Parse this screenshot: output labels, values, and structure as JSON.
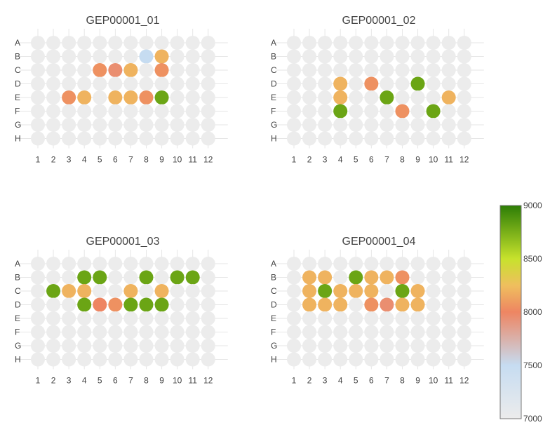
{
  "chart_data": {
    "type": "heatmap",
    "rows": [
      "A",
      "B",
      "C",
      "D",
      "E",
      "F",
      "G",
      "H"
    ],
    "cols": [
      "1",
      "2",
      "3",
      "4",
      "5",
      "6",
      "7",
      "8",
      "9",
      "10",
      "11",
      "12"
    ],
    "empty_color": "#ececec",
    "color_scale": {
      "min": 7000,
      "max": 9000,
      "ticks": [
        "7000",
        "7500",
        "8000",
        "8500",
        "9000"
      ],
      "stops": [
        {
          "value": 7000,
          "color": "#ececec"
        },
        {
          "value": 7500,
          "color": "#c6dcf1"
        },
        {
          "value": 8000,
          "color": "#ee8562"
        },
        {
          "value": 8250,
          "color": "#efbf5e"
        },
        {
          "value": 8500,
          "color": "#c7e22c"
        },
        {
          "value": 9000,
          "color": "#2d7d06"
        }
      ]
    },
    "plates": [
      {
        "title": "GEP00001_01",
        "wells": [
          {
            "row": "B",
            "col": 8,
            "value": 7500
          },
          {
            "row": "B",
            "col": 9,
            "value": 8200
          },
          {
            "row": "C",
            "col": 5,
            "value": 8050
          },
          {
            "row": "C",
            "col": 6,
            "value": 7950
          },
          {
            "row": "C",
            "col": 7,
            "value": 8200
          },
          {
            "row": "C",
            "col": 9,
            "value": 8050
          },
          {
            "row": "E",
            "col": 3,
            "value": 8050
          },
          {
            "row": "E",
            "col": 4,
            "value": 8200
          },
          {
            "row": "E",
            "col": 6,
            "value": 8200
          },
          {
            "row": "E",
            "col": 7,
            "value": 8200
          },
          {
            "row": "E",
            "col": 8,
            "value": 8050
          },
          {
            "row": "E",
            "col": 9,
            "value": 8800
          }
        ]
      },
      {
        "title": "GEP00001_02",
        "wells": [
          {
            "row": "D",
            "col": 4,
            "value": 8200
          },
          {
            "row": "D",
            "col": 6,
            "value": 8050
          },
          {
            "row": "D",
            "col": 9,
            "value": 8800
          },
          {
            "row": "E",
            "col": 4,
            "value": 8200
          },
          {
            "row": "E",
            "col": 7,
            "value": 8800
          },
          {
            "row": "E",
            "col": 11,
            "value": 8200
          },
          {
            "row": "F",
            "col": 4,
            "value": 8800
          },
          {
            "row": "F",
            "col": 8,
            "value": 8050
          },
          {
            "row": "F",
            "col": 10,
            "value": 8800
          }
        ]
      },
      {
        "title": "GEP00001_03",
        "wells": [
          {
            "row": "B",
            "col": 4,
            "value": 8800
          },
          {
            "row": "B",
            "col": 5,
            "value": 8800
          },
          {
            "row": "B",
            "col": 8,
            "value": 8800
          },
          {
            "row": "B",
            "col": 10,
            "value": 8800
          },
          {
            "row": "B",
            "col": 11,
            "value": 8800
          },
          {
            "row": "C",
            "col": 2,
            "value": 8800
          },
          {
            "row": "C",
            "col": 3,
            "value": 8200
          },
          {
            "row": "C",
            "col": 4,
            "value": 8200
          },
          {
            "row": "C",
            "col": 7,
            "value": 8200
          },
          {
            "row": "C",
            "col": 9,
            "value": 8200
          },
          {
            "row": "D",
            "col": 4,
            "value": 8800
          },
          {
            "row": "D",
            "col": 5,
            "value": 8000
          },
          {
            "row": "D",
            "col": 6,
            "value": 8050
          },
          {
            "row": "D",
            "col": 7,
            "value": 8800
          },
          {
            "row": "D",
            "col": 8,
            "value": 8800
          },
          {
            "row": "D",
            "col": 9,
            "value": 8800
          }
        ]
      },
      {
        "title": "GEP00001_04",
        "wells": [
          {
            "row": "B",
            "col": 2,
            "value": 8200
          },
          {
            "row": "B",
            "col": 3,
            "value": 8200
          },
          {
            "row": "B",
            "col": 5,
            "value": 8800
          },
          {
            "row": "B",
            "col": 6,
            "value": 8200
          },
          {
            "row": "B",
            "col": 7,
            "value": 8200
          },
          {
            "row": "B",
            "col": 8,
            "value": 8050
          },
          {
            "row": "C",
            "col": 2,
            "value": 8200
          },
          {
            "row": "C",
            "col": 3,
            "value": 8800
          },
          {
            "row": "C",
            "col": 4,
            "value": 8200
          },
          {
            "row": "C",
            "col": 5,
            "value": 8200
          },
          {
            "row": "C",
            "col": 6,
            "value": 8200
          },
          {
            "row": "C",
            "col": 8,
            "value": 8800
          },
          {
            "row": "C",
            "col": 9,
            "value": 8200
          },
          {
            "row": "D",
            "col": 2,
            "value": 8200
          },
          {
            "row": "D",
            "col": 3,
            "value": 8200
          },
          {
            "row": "D",
            "col": 4,
            "value": 8200
          },
          {
            "row": "D",
            "col": 6,
            "value": 8050
          },
          {
            "row": "D",
            "col": 7,
            "value": 7950
          },
          {
            "row": "D",
            "col": 8,
            "value": 8200
          },
          {
            "row": "D",
            "col": 9,
            "value": 8200
          }
        ]
      }
    ]
  }
}
